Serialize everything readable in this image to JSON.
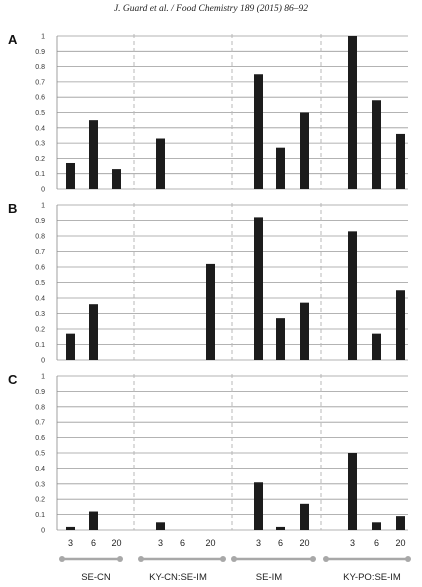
{
  "header": {
    "citation": "J. Guard et al. / Food Chemistry 189 (2015) 86–92"
  },
  "chart_data": {
    "type": "bar",
    "panels_layout": "three stacked panels sharing x categories",
    "groups": [
      "SE-CN",
      "KY-CN:SE-IM",
      "SE-IM",
      "KY-PO:SE-IM"
    ],
    "subcategories": [
      "3",
      "6",
      "20"
    ],
    "y_ticks": [
      "0",
      "0.1",
      "0.2",
      "0.3",
      "0.4",
      "0.5",
      "0.6",
      "0.7",
      "0.8",
      "0.9",
      "1"
    ],
    "ylim": [
      0,
      1
    ],
    "grid": true,
    "bar_color": "#1c1c1c",
    "panels": [
      {
        "label": "A",
        "values": [
          [
            0.17,
            0.45,
            0.13
          ],
          [
            0.33,
            null,
            null
          ],
          [
            0.75,
            0.27,
            0.5
          ],
          [
            1.0,
            0.58,
            0.36
          ]
        ]
      },
      {
        "label": "B",
        "values": [
          [
            0.17,
            0.36,
            null
          ],
          [
            null,
            null,
            0.62
          ],
          [
            0.92,
            0.27,
            0.37
          ],
          [
            0.83,
            0.17,
            0.45
          ]
        ]
      },
      {
        "label": "C",
        "values": [
          [
            0.02,
            0.12,
            null
          ],
          [
            0.05,
            null,
            null
          ],
          [
            0.31,
            0.02,
            0.17
          ],
          [
            0.5,
            0.05,
            0.09
          ]
        ]
      }
    ]
  }
}
